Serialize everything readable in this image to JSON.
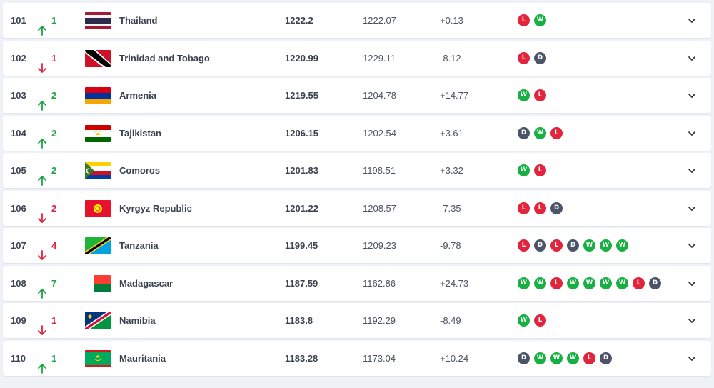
{
  "colors": {
    "up": "#19a443",
    "down": "#e0233c",
    "W": "#19b043",
    "L": "#e0253d",
    "D": "#4b5468"
  },
  "icons": {
    "up": "arrow-up-icon",
    "down": "arrow-down-icon",
    "expand": "chevron-down-icon"
  },
  "rows": [
    {
      "rank": "101",
      "dir": "up",
      "move": "1",
      "country": "Thailand",
      "flag": "thailand",
      "points": "1222.2",
      "prev": "1222.07",
      "diff": "+0.13",
      "form": [
        "L",
        "W"
      ]
    },
    {
      "rank": "102",
      "dir": "down",
      "move": "1",
      "country": "Trinidad and Tobago",
      "flag": "trinidad",
      "points": "1220.99",
      "prev": "1229.11",
      "diff": "-8.12",
      "form": [
        "L",
        "D"
      ]
    },
    {
      "rank": "103",
      "dir": "up",
      "move": "2",
      "country": "Armenia",
      "flag": "armenia",
      "points": "1219.55",
      "prev": "1204.78",
      "diff": "+14.77",
      "form": [
        "W",
        "L"
      ]
    },
    {
      "rank": "104",
      "dir": "up",
      "move": "2",
      "country": "Tajikistan",
      "flag": "tajikistan",
      "points": "1206.15",
      "prev": "1202.54",
      "diff": "+3.61",
      "form": [
        "D",
        "W",
        "L"
      ]
    },
    {
      "rank": "105",
      "dir": "up",
      "move": "2",
      "country": "Comoros",
      "flag": "comoros",
      "points": "1201.83",
      "prev": "1198.51",
      "diff": "+3.32",
      "form": [
        "W",
        "L"
      ]
    },
    {
      "rank": "106",
      "dir": "down",
      "move": "2",
      "country": "Kyrgyz Republic",
      "flag": "kyrgyz",
      "points": "1201.22",
      "prev": "1208.57",
      "diff": "-7.35",
      "form": [
        "L",
        "L",
        "D"
      ]
    },
    {
      "rank": "107",
      "dir": "down",
      "move": "4",
      "country": "Tanzania",
      "flag": "tanzania",
      "points": "1199.45",
      "prev": "1209.23",
      "diff": "-9.78",
      "form": [
        "L",
        "D",
        "L",
        "D",
        "W",
        "W",
        "W"
      ]
    },
    {
      "rank": "108",
      "dir": "up",
      "move": "7",
      "country": "Madagascar",
      "flag": "madagascar",
      "points": "1187.59",
      "prev": "1162.86",
      "diff": "+24.73",
      "form": [
        "W",
        "W",
        "L",
        "W",
        "W",
        "W",
        "W",
        "L",
        "D"
      ]
    },
    {
      "rank": "109",
      "dir": "down",
      "move": "1",
      "country": "Namibia",
      "flag": "namibia",
      "points": "1183.8",
      "prev": "1192.29",
      "diff": "-8.49",
      "form": [
        "W",
        "L"
      ]
    },
    {
      "rank": "110",
      "dir": "up",
      "move": "1",
      "country": "Mauritania",
      "flag": "mauritania",
      "points": "1183.28",
      "prev": "1173.04",
      "diff": "+10.24",
      "form": [
        "D",
        "W",
        "W",
        "W",
        "L",
        "D"
      ]
    }
  ]
}
